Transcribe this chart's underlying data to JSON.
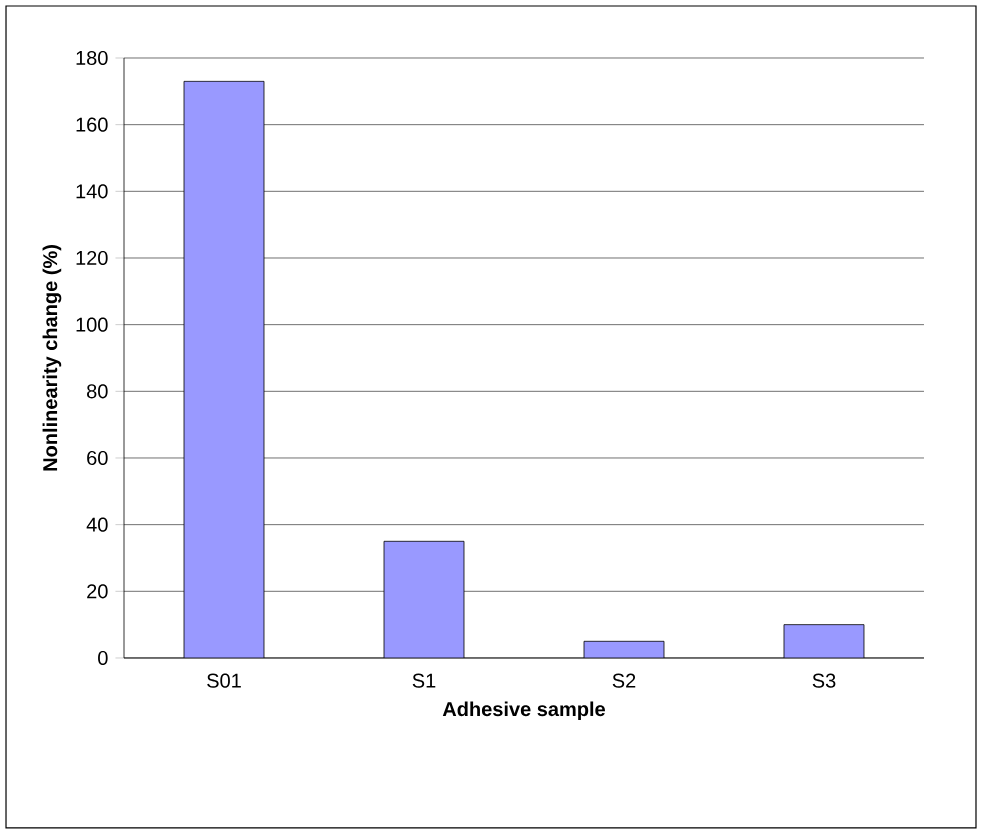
{
  "chart_data": {
    "type": "bar",
    "xlabel": "Adhesive sample",
    "ylabel": "Nonlinearity change (%)",
    "categories": [
      "S01",
      "S1",
      "S2",
      "S3"
    ],
    "values": [
      173,
      35,
      5,
      10
    ],
    "color": "#9999ff",
    "ylim": [
      0,
      180
    ],
    "yticks": [
      0,
      20,
      40,
      60,
      80,
      100,
      120,
      140,
      160,
      180
    ],
    "grid": "y"
  }
}
